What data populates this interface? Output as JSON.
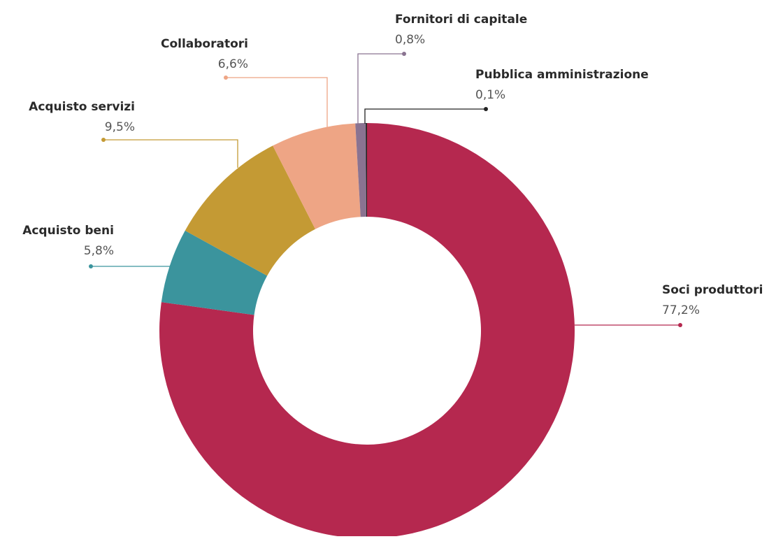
{
  "chart_data": {
    "type": "donut",
    "categories": [
      "Soci produttori",
      "Acquisto beni",
      "Acquisto servizi",
      "Collaboratori",
      "Fornitori di capitale",
      "Pubblica amministrazione"
    ],
    "values": [
      77.2,
      5.8,
      9.5,
      6.6,
      0.8,
      0.1
    ],
    "value_labels": [
      "77,2%",
      "5,8%",
      "9,5%",
      "6,6%",
      "0,8%",
      "0,1%"
    ],
    "colors": [
      "#b5284f",
      "#3b949d",
      "#c49a34",
      "#eea585",
      "#8a7391",
      "#222222"
    ]
  }
}
